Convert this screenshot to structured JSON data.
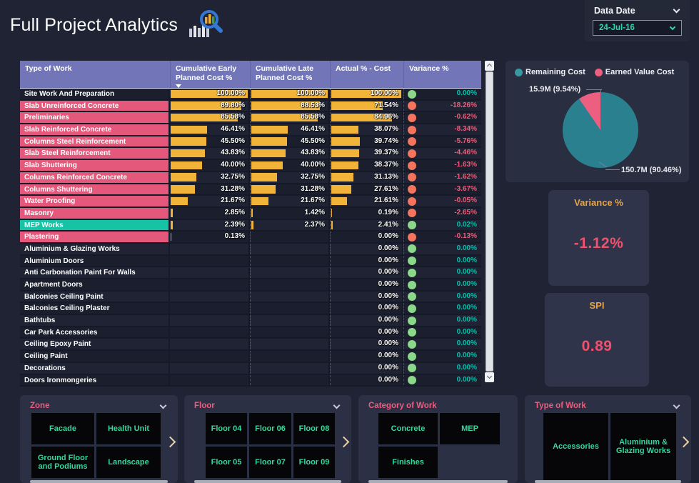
{
  "header": {
    "title": "Full Project Analytics"
  },
  "data_date": {
    "label": "Data Date",
    "value": "24-Jul-16"
  },
  "icons": {
    "title_icon": "bar-chart-magnifier",
    "data_date_chevron": "chevron-down",
    "select_chevron": "chevron-down",
    "sort_indicator": "triangle-down",
    "scroll_up": "caret-up",
    "scroll_down": "caret-down",
    "filter_collapse": "chevron-down",
    "filter_next": "chevron-right"
  },
  "colors": {
    "page_bg": "#1f2333",
    "header_purple": "#7276b9",
    "row_pink": "#e4587c",
    "row_teal": "#16c3a5",
    "bar_orange": "#f2b339",
    "dot_green": "#8cd88a",
    "dot_red": "#f4745e",
    "value_pos_teal": "#00c3ac",
    "value_neg_pink": "#ee5c78",
    "pie_teal": "#2b8090",
    "pie_pink": "#ec5f80",
    "card_title_orange": "#e9a43e",
    "card_value_pink": "#f0516e",
    "tile_text_green": "#35d89d",
    "filter_title_pink": "#f05a7d"
  },
  "table": {
    "columns": [
      "Type of Work",
      "Cumulative Early Planned Cost %",
      "Cumulative Late Planned Cost %",
      "Actual % - Cost",
      "Variance %"
    ],
    "rows": [
      {
        "name": "Site Work And Preparation",
        "highlight": "none",
        "early": 100,
        "early_label": "100.00%",
        "late": 100,
        "late_label": "100.00%",
        "actual": 100,
        "actual_label": "100.00%",
        "status": "green",
        "variance": "0.00%",
        "variance_tone": "pos"
      },
      {
        "name": "Slab Unreinforced Concrete",
        "highlight": "pink",
        "early": 89.8,
        "early_label": "89.80%",
        "late": 88.53,
        "late_label": "88.53%",
        "actual": 71.54,
        "actual_label": "71.54%",
        "status": "red",
        "variance": "-18.26%",
        "variance_tone": "neg"
      },
      {
        "name": "Preliminaries",
        "highlight": "pink",
        "early": 85.58,
        "early_label": "85.58%",
        "late": 85.58,
        "late_label": "85.58%",
        "actual": 84.96,
        "actual_label": "84.96%",
        "status": "red",
        "variance": "-0.62%",
        "variance_tone": "neg"
      },
      {
        "name": "Slab Reinforced Concrete",
        "highlight": "pink",
        "early": 46.41,
        "early_label": "46.41%",
        "late": 46.41,
        "late_label": "46.41%",
        "actual": 38.07,
        "actual_label": "38.07%",
        "status": "red",
        "variance": "-8.34%",
        "variance_tone": "neg"
      },
      {
        "name": "Columns Steel Reinforcement",
        "highlight": "pink",
        "early": 45.5,
        "early_label": "45.50%",
        "late": 45.5,
        "late_label": "45.50%",
        "actual": 39.74,
        "actual_label": "39.74%",
        "status": "red",
        "variance": "-5.76%",
        "variance_tone": "neg"
      },
      {
        "name": "Slab Steel Reinforcement",
        "highlight": "pink",
        "early": 43.83,
        "early_label": "43.83%",
        "late": 43.83,
        "late_label": "43.83%",
        "actual": 39.37,
        "actual_label": "39.37%",
        "status": "red",
        "variance": "-4.46%",
        "variance_tone": "neg"
      },
      {
        "name": "Slab Shuttering",
        "highlight": "pink",
        "early": 40,
        "early_label": "40.00%",
        "late": 40,
        "late_label": "40.00%",
        "actual": 38.37,
        "actual_label": "38.37%",
        "status": "red",
        "variance": "-1.63%",
        "variance_tone": "neg"
      },
      {
        "name": "Columns Reinforced Concrete",
        "highlight": "pink",
        "early": 32.75,
        "early_label": "32.75%",
        "late": 32.75,
        "late_label": "32.75%",
        "actual": 31.13,
        "actual_label": "31.13%",
        "status": "red",
        "variance": "-1.62%",
        "variance_tone": "neg"
      },
      {
        "name": "Columns Shuttering",
        "highlight": "pink",
        "early": 31.28,
        "early_label": "31.28%",
        "late": 31.28,
        "late_label": "31.28%",
        "actual": 27.61,
        "actual_label": "27.61%",
        "status": "red",
        "variance": "-3.67%",
        "variance_tone": "neg"
      },
      {
        "name": "Water Proofing",
        "highlight": "pink",
        "early": 21.67,
        "early_label": "21.67%",
        "late": 21.67,
        "late_label": "21.67%",
        "actual": 21.61,
        "actual_label": "21.61%",
        "status": "red",
        "variance": "-0.05%",
        "variance_tone": "neg"
      },
      {
        "name": "Masonry",
        "highlight": "pink",
        "early": 2.85,
        "early_label": "2.85%",
        "late": 1.42,
        "late_label": "1.42%",
        "actual": 0.19,
        "actual_label": "0.19%",
        "status": "red",
        "variance": "-2.65%",
        "variance_tone": "neg"
      },
      {
        "name": "MEP Works",
        "highlight": "teal",
        "early": 2.39,
        "early_label": "2.39%",
        "late": 2.37,
        "late_label": "2.37%",
        "actual": 2.41,
        "actual_label": "2.41%",
        "status": "green",
        "variance": "0.02%",
        "variance_tone": "pos"
      },
      {
        "name": "Plastering",
        "highlight": "pink",
        "early": 0.13,
        "early_label": "0.13%",
        "late": null,
        "late_label": "",
        "actual": 0,
        "actual_label": "0.00%",
        "status": "red",
        "variance": "-0.13%",
        "variance_tone": "neg"
      },
      {
        "name": "Aluminium & Glazing Works",
        "highlight": "none",
        "early": null,
        "early_label": "",
        "late": null,
        "late_label": "",
        "actual": 0,
        "actual_label": "0.00%",
        "status": "green",
        "variance": "0.00%",
        "variance_tone": "pos"
      },
      {
        "name": "Aluminium Doors",
        "highlight": "none",
        "early": null,
        "early_label": "",
        "late": null,
        "late_label": "",
        "actual": 0,
        "actual_label": "0.00%",
        "status": "green",
        "variance": "0.00%",
        "variance_tone": "pos"
      },
      {
        "name": "Anti Carbonation Paint For Walls",
        "highlight": "none",
        "early": null,
        "early_label": "",
        "late": null,
        "late_label": "",
        "actual": 0,
        "actual_label": "0.00%",
        "status": "green",
        "variance": "0.00%",
        "variance_tone": "pos"
      },
      {
        "name": "Apartment Doors",
        "highlight": "none",
        "early": null,
        "early_label": "",
        "late": null,
        "late_label": "",
        "actual": 0,
        "actual_label": "0.00%",
        "status": "green",
        "variance": "0.00%",
        "variance_tone": "pos"
      },
      {
        "name": "Balconies Ceiling Paint",
        "highlight": "none",
        "early": null,
        "early_label": "",
        "late": null,
        "late_label": "",
        "actual": 0,
        "actual_label": "0.00%",
        "status": "green",
        "variance": "0.00%",
        "variance_tone": "pos"
      },
      {
        "name": "Balconies Ceiling Plaster",
        "highlight": "none",
        "early": null,
        "early_label": "",
        "late": null,
        "late_label": "",
        "actual": 0,
        "actual_label": "0.00%",
        "status": "green",
        "variance": "0.00%",
        "variance_tone": "pos"
      },
      {
        "name": "Bathtubs",
        "highlight": "none",
        "early": null,
        "early_label": "",
        "late": null,
        "late_label": "",
        "actual": 0,
        "actual_label": "0.00%",
        "status": "green",
        "variance": "0.00%",
        "variance_tone": "pos"
      },
      {
        "name": "Car Park Accessories",
        "highlight": "none",
        "early": null,
        "early_label": "",
        "late": null,
        "late_label": "",
        "actual": 0,
        "actual_label": "0.00%",
        "status": "green",
        "variance": "0.00%",
        "variance_tone": "pos"
      },
      {
        "name": "Ceiling Epoxy Paint",
        "highlight": "none",
        "early": null,
        "early_label": "",
        "late": null,
        "late_label": "",
        "actual": 0,
        "actual_label": "0.00%",
        "status": "green",
        "variance": "0.00%",
        "variance_tone": "pos"
      },
      {
        "name": "Ceiling Paint",
        "highlight": "none",
        "early": null,
        "early_label": "",
        "late": null,
        "late_label": "",
        "actual": 0,
        "actual_label": "0.00%",
        "status": "green",
        "variance": "0.00%",
        "variance_tone": "pos"
      },
      {
        "name": "Decorations",
        "highlight": "none",
        "early": null,
        "early_label": "",
        "late": null,
        "late_label": "",
        "actual": 0,
        "actual_label": "0.00%",
        "status": "green",
        "variance": "0.00%",
        "variance_tone": "pos"
      },
      {
        "name": "Doors Ironmongeries",
        "highlight": "none",
        "early": null,
        "early_label": "",
        "late": null,
        "late_label": "",
        "actual": 0,
        "actual_label": "0.00%",
        "status": "green",
        "variance": "0.00%",
        "variance_tone": "pos"
      },
      {
        "name": "",
        "highlight": "none",
        "early": null,
        "early_label": "",
        "late": null,
        "late_label": "",
        "actual": null,
        "actual_label": "",
        "status": "green",
        "variance": "",
        "variance_tone": "pos"
      }
    ]
  },
  "chart_data": {
    "type": "pie",
    "title": "",
    "labels": [
      "Remaining Cost",
      "Earned Value Cost"
    ],
    "values": [
      90.46,
      9.54
    ],
    "value_labels": [
      "150.7M (90.46%)",
      "15.9M (9.54%)"
    ],
    "colors": [
      "#2b8090",
      "#ec5f80"
    ],
    "legend_position": "top"
  },
  "pie": {
    "legend": [
      {
        "label": "Remaining Cost",
        "color": "#3a98a3"
      },
      {
        "label": "Earned Value Cost",
        "color": "#ec5f80"
      }
    ],
    "slice_label_small": "15.9M (9.54%)",
    "slice_label_big": "150.7M (90.46%)"
  },
  "cards": {
    "variance": {
      "title": "Variance %",
      "value": "-1.12%"
    },
    "spi": {
      "title": "SPI",
      "value": "0.89"
    }
  },
  "filters": [
    {
      "title": "Zone",
      "layout": "zone",
      "has_collapse": true,
      "has_next": true,
      "items": [
        "Facade",
        "Health Unit",
        "Ground Floor and Podiums",
        "Landscape"
      ]
    },
    {
      "title": "Floor",
      "layout": "floor",
      "has_collapse": true,
      "has_next": true,
      "items": [
        "Floor 04",
        "Floor 06",
        "Floor 08",
        "Floor 05",
        "Floor 07",
        "Floor 09"
      ]
    },
    {
      "title": "Category of Work",
      "layout": "category",
      "has_collapse": false,
      "has_next": false,
      "items": [
        "Concrete",
        "MEP",
        "Finishes"
      ]
    },
    {
      "title": "Type of Work",
      "layout": "type",
      "has_collapse": true,
      "has_next": true,
      "items": [
        "Accessories",
        "Aluminium & Glazing Works"
      ]
    }
  ]
}
